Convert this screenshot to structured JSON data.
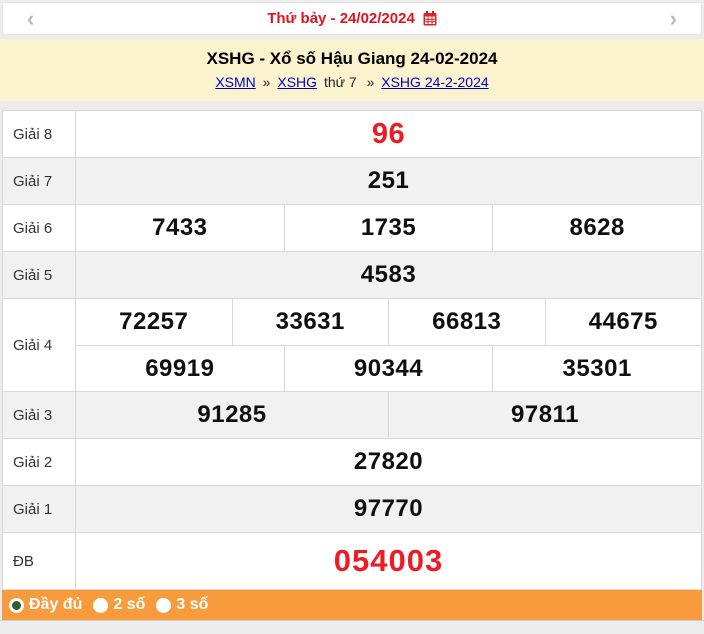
{
  "nav": {
    "prev_arrow": "‹",
    "next_arrow": "›",
    "date_label": "Thứ bảy - 24/02/2024"
  },
  "banner": {
    "title": "XSHG - Xổ số Hậu Giang 24-02-2024",
    "breadcrumb": [
      {
        "text": "XSMN",
        "type": "link"
      },
      {
        "text": "»",
        "type": "sep"
      },
      {
        "text": "XSHG",
        "type": "link"
      },
      {
        "text": "thứ 7",
        "type": "text"
      },
      {
        "text": "»",
        "type": "sep"
      },
      {
        "text": "XSHG 24-2-2024",
        "type": "link"
      }
    ]
  },
  "results": {
    "rows": [
      {
        "label": "Giải 8",
        "highlight": true,
        "groups": [
          [
            "96"
          ]
        ]
      },
      {
        "label": "Giải 7",
        "highlight": false,
        "groups": [
          [
            "251"
          ]
        ]
      },
      {
        "label": "Giải 6",
        "highlight": false,
        "groups": [
          [
            "7433",
            "1735",
            "8628"
          ]
        ]
      },
      {
        "label": "Giải 5",
        "highlight": false,
        "groups": [
          [
            "4583"
          ]
        ]
      },
      {
        "label": "Giải 4",
        "highlight": false,
        "groups": [
          [
            "72257",
            "33631",
            "66813",
            "44675"
          ],
          [
            "69919",
            "90344",
            "35301"
          ]
        ]
      },
      {
        "label": "Giải 3",
        "highlight": false,
        "groups": [
          [
            "91285",
            "97811"
          ]
        ]
      },
      {
        "label": "Giải 2",
        "highlight": false,
        "groups": [
          [
            "27820"
          ]
        ]
      },
      {
        "label": "Giải 1",
        "highlight": false,
        "groups": [
          [
            "97770"
          ]
        ]
      },
      {
        "label": "ĐB",
        "highlight": true,
        "groups": [
          [
            "054003"
          ]
        ]
      }
    ]
  },
  "footer": {
    "options": [
      {
        "label": "Đầy đủ",
        "selected": true
      },
      {
        "label": "2 số",
        "selected": false
      },
      {
        "label": "3 số",
        "selected": false
      }
    ]
  },
  "colors": {
    "accent_red": "#ed1c24",
    "banner_bg": "#fbf2ce",
    "bar_orange": "#f89b3c",
    "link_blue": "#0000cc",
    "shaded_row": "#f1f1f1",
    "radio_selected_dot": "#2e5e2e",
    "border_gray": "#d8d8d8"
  }
}
